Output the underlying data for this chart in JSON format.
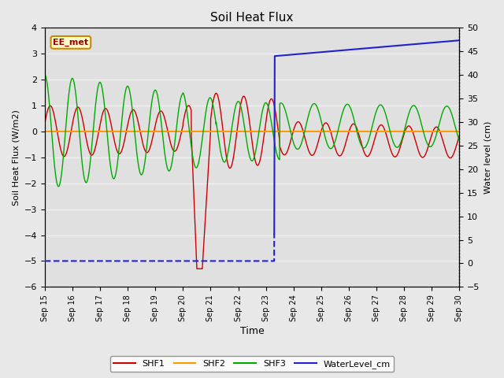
{
  "title": "Soil Heat Flux",
  "xlabel": "Time",
  "ylabel_left": "Soil Heat Flux (W/m2)",
  "ylabel_right": "Water level (cm)",
  "ylim_left": [
    -6.0,
    4.0
  ],
  "ylim_right": [
    -5,
    50
  ],
  "yticks_left": [
    -6.0,
    -5.0,
    -4.0,
    -3.0,
    -2.0,
    -1.0,
    0.0,
    1.0,
    2.0,
    3.0,
    4.0
  ],
  "yticks_right": [
    -5,
    0,
    5,
    10,
    15,
    20,
    25,
    30,
    35,
    40,
    45,
    50
  ],
  "fig_bg_color": "#e8e8e8",
  "plot_bg_color": "#e0e0e0",
  "grid_color": "#f0f0f0",
  "shf1_color": "#cc0000",
  "shf2_color": "#ff9900",
  "shf3_color": "#00aa00",
  "water_color": "#2222cc",
  "annotation_text": "EE_met",
  "annotation_bg": "#ffffcc",
  "annotation_border": "#cc8800",
  "legend_items": [
    "SHF1",
    "SHF2",
    "SHF3",
    "WaterLevel_cm"
  ]
}
